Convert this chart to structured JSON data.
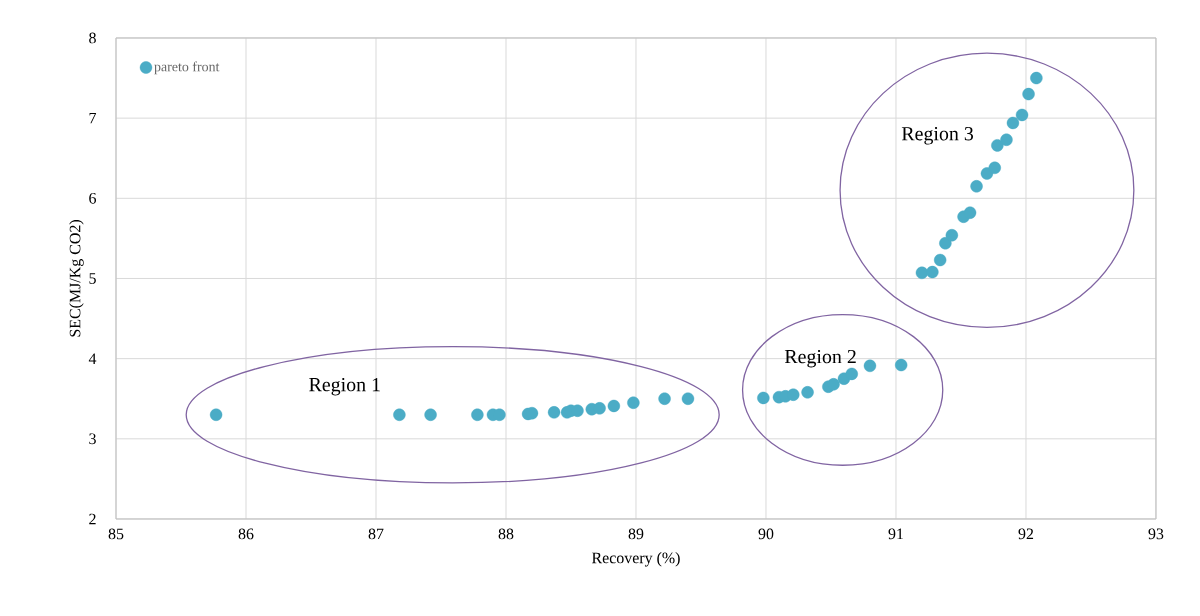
{
  "chart_data": {
    "type": "scatter",
    "xlabel": "Recovery (%)",
    "ylabel": "SEC(MJ/Kg CO2)",
    "xlim": [
      85,
      93
    ],
    "ylim": [
      2,
      8
    ],
    "xticks": [
      85,
      86,
      87,
      88,
      89,
      90,
      91,
      92,
      93
    ],
    "yticks": [
      2,
      3,
      4,
      5,
      6,
      7,
      8
    ],
    "grid": true,
    "legend": "top left",
    "series": [
      {
        "name": "pareto front",
        "color": "#4bacc6",
        "x": [
          85.77,
          87.18,
          87.42,
          87.78,
          87.9,
          87.95,
          88.17,
          88.2,
          88.37,
          88.47,
          88.5,
          88.55,
          88.66,
          88.72,
          88.83,
          88.98,
          89.22,
          89.4,
          89.98,
          90.1,
          90.15,
          90.21,
          90.32,
          90.48,
          90.52,
          90.6,
          90.66,
          90.8,
          91.04,
          91.2,
          91.28,
          91.34,
          91.38,
          91.43,
          91.52,
          91.57,
          91.62,
          91.7,
          91.76,
          91.78,
          91.85,
          91.9,
          91.97,
          92.02,
          92.08
        ],
        "values": [
          3.3,
          3.3,
          3.3,
          3.3,
          3.3,
          3.3,
          3.31,
          3.32,
          3.33,
          3.33,
          3.35,
          3.35,
          3.37,
          3.38,
          3.41,
          3.45,
          3.5,
          3.5,
          3.51,
          3.52,
          3.53,
          3.55,
          3.58,
          3.65,
          3.68,
          3.75,
          3.81,
          3.91,
          3.92,
          5.07,
          5.08,
          5.23,
          5.44,
          5.54,
          5.77,
          5.82,
          6.15,
          6.31,
          6.38,
          6.66,
          6.73,
          6.94,
          7.04,
          7.3,
          7.5
        ]
      }
    ],
    "annotations": [
      "Region 1",
      "Region 2",
      "Region 3"
    ]
  }
}
